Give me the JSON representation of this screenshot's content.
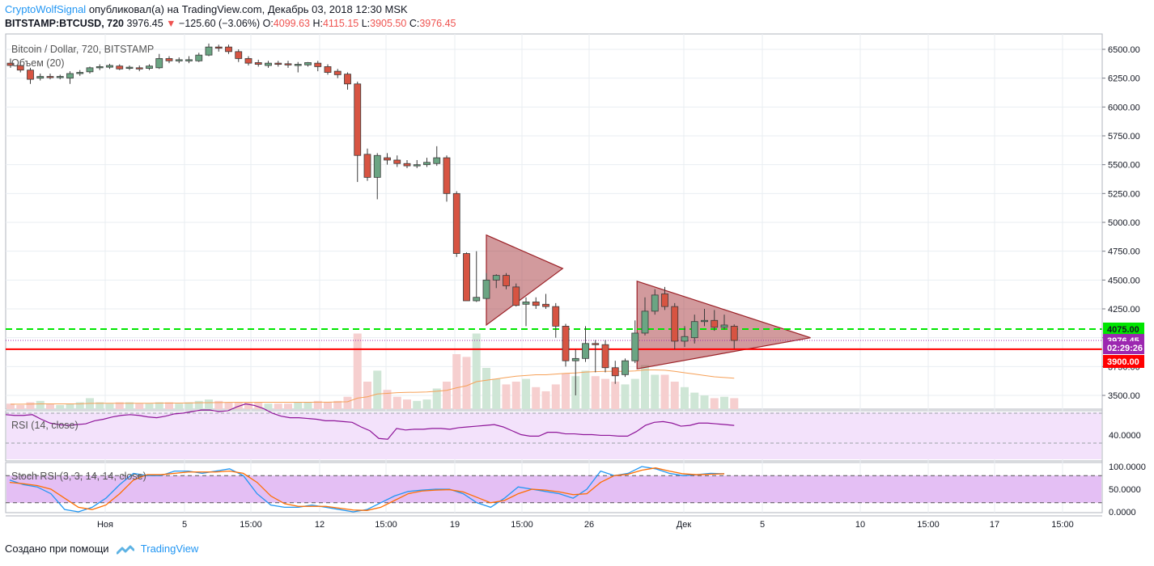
{
  "header": {
    "author": "CryptoWolfSignal",
    "published_text": "опубликовал(а) на TradingView.com, Декабрь 03, 2018 12:30 MSK",
    "symbol": "BITSTAMP:BTCUSD, 720",
    "last": "3976.45",
    "change": "−125.60 (−3.06%)",
    "o_label": "O:",
    "o_value": "4099.63",
    "h_label": "H:",
    "h_value": "4115.15",
    "l_label": "L:",
    "l_value": "3905.50",
    "c_label": "C:",
    "c_value": "3976.45"
  },
  "footer": {
    "created_text": "Создано при помощи",
    "brand": "TradingView"
  },
  "colors": {
    "up": "#6ba583",
    "down": "#d75442",
    "grid": "#e9eef2",
    "rsi_line": "#8e1599",
    "band": "#f3e2fb",
    "stoch_band": "#e4bff4",
    "stoch_k": "#2196f3",
    "stoch_d": "#ff6d00",
    "green_level": "#00e600",
    "red_level": "#ff0000"
  },
  "chart_data": [
    {
      "type": "candlestick",
      "title": "Bitcoin / Dollar, 720, BITSTAMP",
      "volume_label": "Объем (20)",
      "ylim": [
        3300,
        6600
      ],
      "y_ticks": [
        3500,
        3750,
        4000,
        4250,
        4500,
        4750,
        5000,
        5250,
        5500,
        5750,
        6000,
        6250,
        6500
      ],
      "x_ticks": [
        "Ноя",
        "5",
        "15:00",
        "12",
        "15:00",
        "19",
        "15:00",
        "26",
        "Дек",
        "5",
        "10",
        "15:00",
        "17",
        "15:00"
      ],
      "candles": [
        {
          "o": 6380,
          "h": 6420,
          "l": 6340,
          "c": 6360
        },
        {
          "o": 6360,
          "h": 6400,
          "l": 6300,
          "c": 6320
        },
        {
          "o": 6320,
          "h": 6340,
          "l": 6200,
          "c": 6240
        },
        {
          "o": 6250,
          "h": 6290,
          "l": 6230,
          "c": 6265
        },
        {
          "o": 6265,
          "h": 6290,
          "l": 6240,
          "c": 6255
        },
        {
          "o": 6255,
          "h": 6280,
          "l": 6240,
          "c": 6265
        },
        {
          "o": 6250,
          "h": 6310,
          "l": 6200,
          "c": 6290
        },
        {
          "o": 6290,
          "h": 6320,
          "l": 6270,
          "c": 6300
        },
        {
          "o": 6305,
          "h": 6350,
          "l": 6290,
          "c": 6340
        },
        {
          "o": 6340,
          "h": 6370,
          "l": 6320,
          "c": 6350
        },
        {
          "o": 6345,
          "h": 6375,
          "l": 6330,
          "c": 6360
        },
        {
          "o": 6355,
          "h": 6370,
          "l": 6320,
          "c": 6330
        },
        {
          "o": 6335,
          "h": 6360,
          "l": 6320,
          "c": 6345
        },
        {
          "o": 6340,
          "h": 6360,
          "l": 6310,
          "c": 6330
        },
        {
          "o": 6335,
          "h": 6370,
          "l": 6320,
          "c": 6355
        },
        {
          "o": 6340,
          "h": 6460,
          "l": 6330,
          "c": 6420
        },
        {
          "o": 6420,
          "h": 6440,
          "l": 6380,
          "c": 6400
        },
        {
          "o": 6400,
          "h": 6430,
          "l": 6380,
          "c": 6410
        },
        {
          "o": 6405,
          "h": 6440,
          "l": 6380,
          "c": 6410
        },
        {
          "o": 6400,
          "h": 6470,
          "l": 6390,
          "c": 6450
        },
        {
          "o": 6450,
          "h": 6550,
          "l": 6440,
          "c": 6520
        },
        {
          "o": 6520,
          "h": 6540,
          "l": 6480,
          "c": 6510
        },
        {
          "o": 6520,
          "h": 6540,
          "l": 6460,
          "c": 6480
        },
        {
          "o": 6480,
          "h": 6500,
          "l": 6390,
          "c": 6420
        },
        {
          "o": 6420,
          "h": 6440,
          "l": 6360,
          "c": 6380
        },
        {
          "o": 6385,
          "h": 6410,
          "l": 6350,
          "c": 6370
        },
        {
          "o": 6360,
          "h": 6400,
          "l": 6340,
          "c": 6380
        },
        {
          "o": 6380,
          "h": 6400,
          "l": 6350,
          "c": 6370
        },
        {
          "o": 6375,
          "h": 6400,
          "l": 6340,
          "c": 6365
        },
        {
          "o": 6360,
          "h": 6390,
          "l": 6300,
          "c": 6370
        },
        {
          "o": 6365,
          "h": 6390,
          "l": 6350,
          "c": 6385
        },
        {
          "o": 6380,
          "h": 6400,
          "l": 6310,
          "c": 6350
        },
        {
          "o": 6350,
          "h": 6370,
          "l": 6280,
          "c": 6300
        },
        {
          "o": 6310,
          "h": 6330,
          "l": 6250,
          "c": 6280
        },
        {
          "o": 6285,
          "h": 6300,
          "l": 6150,
          "c": 6200
        },
        {
          "o": 6200,
          "h": 6220,
          "l": 5350,
          "c": 5580
        },
        {
          "o": 5590,
          "h": 5640,
          "l": 5360,
          "c": 5390
        },
        {
          "o": 5390,
          "h": 5600,
          "l": 5200,
          "c": 5580
        },
        {
          "o": 5560,
          "h": 5600,
          "l": 5500,
          "c": 5540
        },
        {
          "o": 5540,
          "h": 5580,
          "l": 5480,
          "c": 5510
        },
        {
          "o": 5510,
          "h": 5540,
          "l": 5470,
          "c": 5490
        },
        {
          "o": 5490,
          "h": 5540,
          "l": 5470,
          "c": 5500
        },
        {
          "o": 5500,
          "h": 5560,
          "l": 5480,
          "c": 5520
        },
        {
          "o": 5510,
          "h": 5660,
          "l": 5490,
          "c": 5560
        },
        {
          "o": 5560,
          "h": 5580,
          "l": 5180,
          "c": 5250
        },
        {
          "o": 5250,
          "h": 5270,
          "l": 4700,
          "c": 4730
        },
        {
          "o": 4730,
          "h": 4740,
          "l": 4320,
          "c": 4320
        },
        {
          "o": 4320,
          "h": 4750,
          "l": 4310,
          "c": 4350
        },
        {
          "o": 4340,
          "h": 4560,
          "l": 4330,
          "c": 4500
        },
        {
          "o": 4500,
          "h": 4550,
          "l": 4430,
          "c": 4540
        },
        {
          "o": 4540,
          "h": 4560,
          "l": 4420,
          "c": 4450
        },
        {
          "o": 4440,
          "h": 4470,
          "l": 4270,
          "c": 4280
        },
        {
          "o": 4290,
          "h": 4350,
          "l": 4100,
          "c": 4310
        },
        {
          "o": 4310,
          "h": 4350,
          "l": 4250,
          "c": 4280
        },
        {
          "o": 4290,
          "h": 4380,
          "l": 4250,
          "c": 4270
        },
        {
          "o": 4270,
          "h": 4300,
          "l": 4000,
          "c": 4100
        },
        {
          "o": 4100,
          "h": 4120,
          "l": 3750,
          "c": 3800
        },
        {
          "o": 3800,
          "h": 3900,
          "l": 3500,
          "c": 3820
        },
        {
          "o": 3820,
          "h": 4100,
          "l": 3790,
          "c": 3950
        },
        {
          "o": 3950,
          "h": 3980,
          "l": 3700,
          "c": 3940
        },
        {
          "o": 3940,
          "h": 3980,
          "l": 3700,
          "c": 3740
        },
        {
          "o": 3740,
          "h": 3800,
          "l": 3600,
          "c": 3670
        },
        {
          "o": 3680,
          "h": 3820,
          "l": 3660,
          "c": 3800
        },
        {
          "o": 3800,
          "h": 4150,
          "l": 3780,
          "c": 4040
        },
        {
          "o": 4040,
          "h": 4350,
          "l": 4020,
          "c": 4230
        },
        {
          "o": 4230,
          "h": 4420,
          "l": 4200,
          "c": 4370
        },
        {
          "o": 4380,
          "h": 4440,
          "l": 4240,
          "c": 4270
        },
        {
          "o": 4270,
          "h": 4300,
          "l": 3900,
          "c": 3970
        },
        {
          "o": 3970,
          "h": 4100,
          "l": 3920,
          "c": 4010
        },
        {
          "o": 4000,
          "h": 4200,
          "l": 3950,
          "c": 4140
        },
        {
          "o": 4140,
          "h": 4250,
          "l": 4100,
          "c": 4150
        },
        {
          "o": 4150,
          "h": 4240,
          "l": 4060,
          "c": 4090
        },
        {
          "o": 4090,
          "h": 4200,
          "l": 4070,
          "c": 4110
        },
        {
          "o": 4099.63,
          "h": 4115.15,
          "l": 3905.5,
          "c": 3976.45
        }
      ],
      "volumes": [
        4,
        3,
        5,
        6,
        4,
        3,
        4,
        5,
        8,
        5,
        4,
        5,
        5,
        4,
        4,
        5,
        5,
        4,
        5,
        6,
        7,
        6,
        5,
        5,
        5,
        5,
        4,
        4,
        4,
        5,
        5,
        6,
        5,
        6,
        9,
        55,
        20,
        28,
        14,
        9,
        7,
        6,
        7,
        15,
        20,
        40,
        38,
        55,
        30,
        22,
        18,
        20,
        22,
        16,
        13,
        18,
        26,
        24,
        28,
        24,
        22,
        20,
        18,
        22,
        32,
        25,
        25,
        20,
        16,
        12,
        10,
        8,
        9,
        8
      ],
      "volume_ma": [
        3.6,
        3.6,
        3.7,
        3.8,
        3.8,
        3.8,
        3.8,
        3.9,
        4.2,
        4.3,
        4.3,
        4.3,
        4.3,
        4.3,
        4.3,
        4.4,
        4.4,
        4.4,
        4.5,
        4.6,
        4.7,
        4.8,
        4.9,
        5.0,
        5.0,
        5.0,
        5.0,
        5.0,
        5.0,
        5.0,
        5.0,
        5.1,
        5.1,
        5.2,
        5.4,
        8,
        9,
        11,
        11.5,
        12,
        12.2,
        12.3,
        12.5,
        13,
        13.7,
        15.5,
        17,
        20,
        21,
        22,
        23,
        24,
        24.5,
        25,
        25,
        25.5,
        26,
        26.3,
        27,
        27.3,
        27.5,
        27.5,
        27.5,
        27.8,
        28.5,
        28.5,
        28.3,
        27.5,
        26.5,
        25.5,
        24.5,
        23.5,
        23,
        22.5
      ],
      "levels": [
        {
          "value": 4075,
          "label": "4075.00"
        },
        {
          "value": 3976.45,
          "label": "3976.45"
        },
        {
          "value": 3900,
          "label": "3900.00"
        }
      ],
      "timer": "02:29:26",
      "triangles": [
        {
          "points": [
            [
              48,
              4890
            ],
            [
              55.7,
              4600
            ],
            [
              48,
              4110
            ]
          ]
        },
        {
          "points": [
            [
              63.2,
              4490
            ],
            [
              80.7,
              4000
            ],
            [
              63.2,
              3730
            ]
          ]
        }
      ]
    },
    {
      "type": "line",
      "title": "RSI (14, close)",
      "ylim": [
        0,
        100
      ],
      "band": [
        30,
        70
      ],
      "y_ticks": [
        40
      ],
      "y_tick_labels": [
        "40.0000"
      ],
      "values": [
        56,
        55,
        55,
        56,
        50,
        45,
        43,
        42,
        43,
        44,
        48,
        50,
        53,
        55,
        56,
        55,
        53,
        52,
        54,
        57,
        58,
        60,
        62,
        62,
        60,
        61,
        66,
        70,
        68,
        64,
        58,
        54,
        52,
        52,
        51,
        50,
        48,
        48,
        47,
        46,
        40,
        35,
        25,
        24,
        38,
        36,
        37,
        37,
        38,
        38,
        37,
        39,
        40,
        41,
        42,
        43,
        40,
        35,
        30,
        28,
        28,
        33,
        33,
        31,
        31,
        30,
        30,
        29,
        29,
        28,
        28,
        34,
        42,
        46,
        47,
        45,
        41,
        42,
        45,
        45,
        44,
        43,
        42
      ]
    },
    {
      "type": "line",
      "title": "Stoch RSI (3, 3, 14, 14, close)",
      "ylim": [
        0,
        100
      ],
      "band": [
        20,
        80
      ],
      "y_ticks": [
        100,
        50,
        0
      ],
      "y_tick_labels": [
        "100.0000",
        "50.0000",
        "0.0000"
      ],
      "series": [
        {
          "values": [
            70,
            60,
            55,
            40,
            5,
            0,
            10,
            30,
            60,
            85,
            80,
            80,
            90,
            90,
            85,
            90,
            95,
            80,
            40,
            15,
            10,
            10,
            15,
            10,
            5,
            0,
            5,
            20,
            35,
            45,
            48,
            50,
            50,
            40,
            20,
            10,
            30,
            55,
            50,
            45,
            40,
            30,
            50,
            90,
            80,
            85,
            100,
            95,
            85,
            80,
            82,
            85,
            84
          ]
        },
        {
          "values": [
            65,
            62,
            58,
            50,
            30,
            10,
            5,
            15,
            40,
            70,
            82,
            82,
            85,
            88,
            88,
            88,
            90,
            85,
            65,
            35,
            18,
            12,
            12,
            12,
            8,
            4,
            3,
            10,
            25,
            40,
            46,
            48,
            49,
            44,
            32,
            20,
            25,
            40,
            50,
            48,
            44,
            38,
            40,
            65,
            80,
            83,
            92,
            97,
            90,
            84,
            82,
            83,
            84
          ]
        }
      ],
      "series_x_end": 72
    }
  ]
}
